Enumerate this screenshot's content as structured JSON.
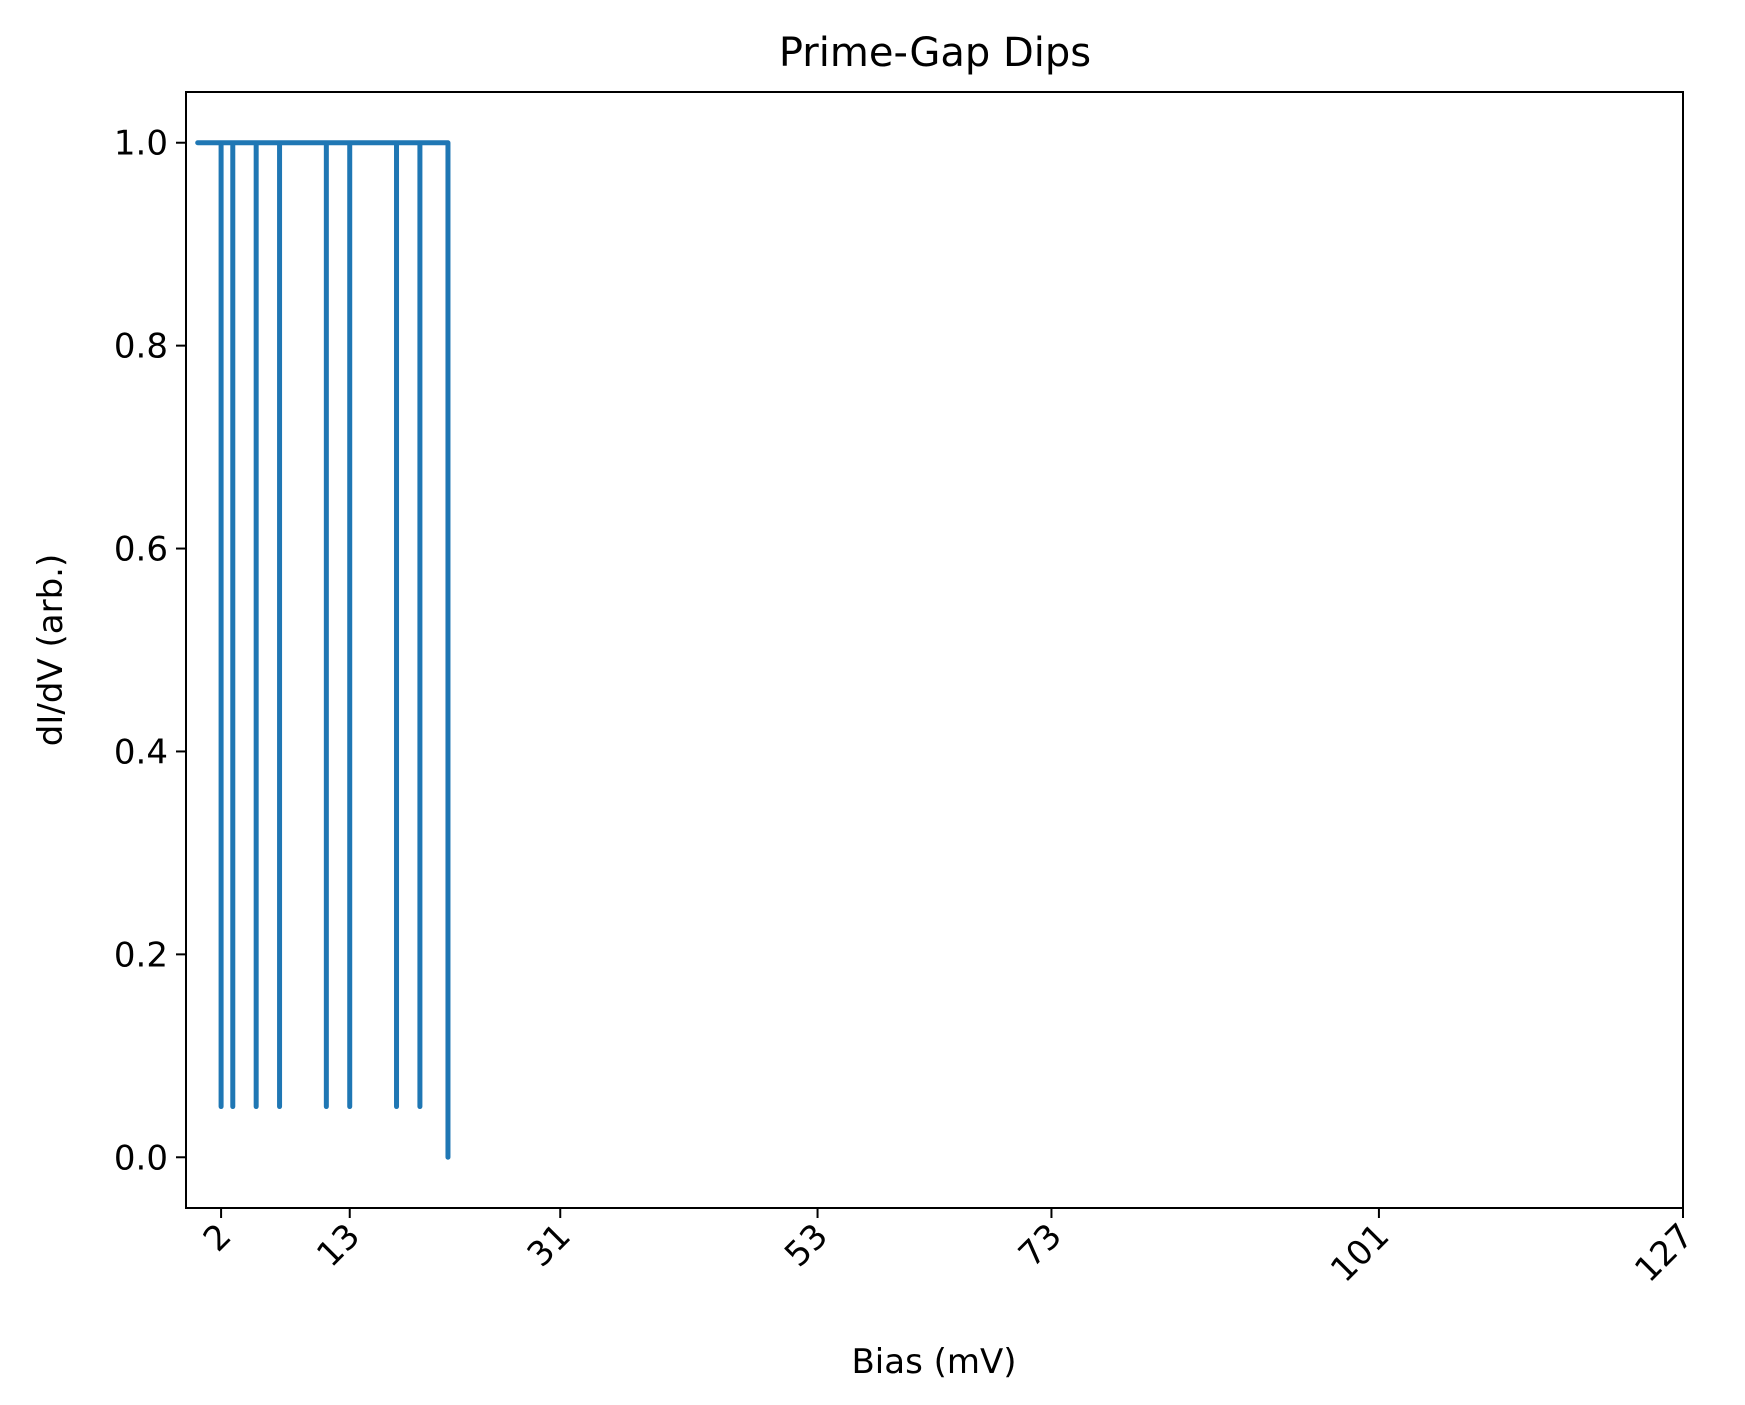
{
  "chart_data": {
    "type": "line",
    "title": "Prime-Gap Dips",
    "xlabel": "Bias (mV)",
    "ylabel": "dI/dV (arb.)",
    "xlim": [
      -1.0,
      127
    ],
    "ylim": [
      -0.05,
      1.05
    ],
    "x_ticks": [
      2,
      13,
      31,
      53,
      73,
      101,
      127
    ],
    "x_tick_labels": [
      "2",
      "13",
      "31",
      "53",
      "73",
      "101",
      "127"
    ],
    "y_ticks": [
      0.0,
      0.2,
      0.4,
      0.6,
      0.8,
      1.0
    ],
    "y_tick_labels": [
      "0.0",
      "0.2",
      "0.4",
      "0.6",
      "0.8",
      "1.0"
    ],
    "grid": false,
    "series": [
      {
        "color": "#1f77b4",
        "x": [
          0,
          2,
          2,
          2,
          3,
          3,
          3,
          5,
          5,
          5,
          7,
          7,
          7,
          11,
          11,
          11,
          13,
          13,
          13,
          17,
          17,
          17,
          19,
          19,
          19,
          21.4,
          21.4
        ],
        "y": [
          1.0,
          1.0,
          0.05,
          1.0,
          1.0,
          0.05,
          1.0,
          1.0,
          0.05,
          1.0,
          1.0,
          0.05,
          1.0,
          1.0,
          0.05,
          1.0,
          1.0,
          0.05,
          1.0,
          1.0,
          0.05,
          1.0,
          1.0,
          0.05,
          1.0,
          1.0,
          0.0
        ]
      }
    ]
  }
}
